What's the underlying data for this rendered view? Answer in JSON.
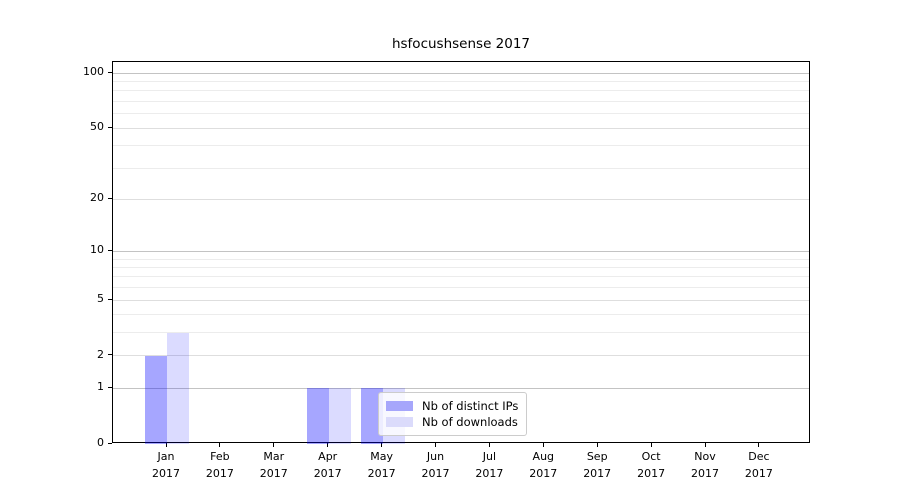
{
  "title": "hsfocushsense 2017",
  "chart_data": {
    "type": "bar",
    "title": "hsfocushsense 2017",
    "categories": [
      "Jan 2017",
      "Feb 2017",
      "Mar 2017",
      "Apr 2017",
      "May 2017",
      "Jun 2017",
      "Jul 2017",
      "Aug 2017",
      "Sep 2017",
      "Oct 2017",
      "Nov 2017",
      "Dec 2017"
    ],
    "x_months": [
      "Jan",
      "Feb",
      "Mar",
      "Apr",
      "May",
      "Jun",
      "Jul",
      "Aug",
      "Sep",
      "Oct",
      "Nov",
      "Dec"
    ],
    "x_year": "2017",
    "series": [
      {
        "name": "Nb of distinct IPs",
        "color": "rgba(0,0,255,0.35)",
        "swatch_color": "#a6a6fb",
        "values": [
          2,
          0,
          0,
          1,
          1,
          0,
          0,
          0,
          0,
          0,
          0,
          0
        ]
      },
      {
        "name": "Nb of downloads",
        "color": "rgba(0,0,255,0.14)",
        "swatch_color": "#dbdbfb",
        "values": [
          3,
          0,
          0,
          1,
          1,
          0,
          0,
          0,
          0,
          0,
          0,
          0
        ]
      }
    ],
    "yscale": "log1p",
    "yticks": [
      0,
      1,
      2,
      5,
      10,
      20,
      50,
      100
    ],
    "ytick_minor": [
      3,
      4,
      6,
      7,
      8,
      9,
      30,
      40,
      60,
      70,
      80,
      90
    ],
    "ylim": [
      0,
      114
    ],
    "xlabel": "",
    "ylabel": "",
    "grid": true,
    "legend_position": "lower-center"
  },
  "colors": {
    "grid_decade": "#c3c3c3",
    "grid_labeled": "#dedede",
    "grid_minor": "#ececec",
    "axis": "#000000",
    "legend_border": "#cccccc",
    "legend_bg": "rgba(255,255,255,0.8)"
  }
}
